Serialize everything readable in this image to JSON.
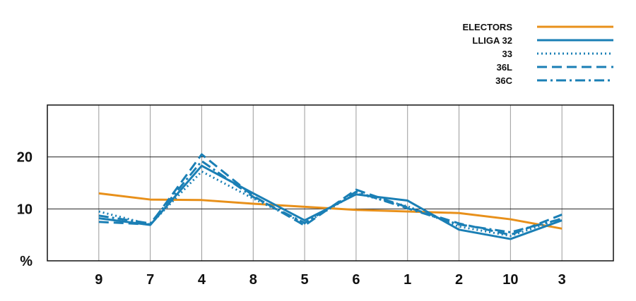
{
  "chart_data": {
    "type": "line",
    "title": "",
    "xlabel": "",
    "ylabel": "%",
    "categories": [
      "9",
      "7",
      "4",
      "8",
      "5",
      "6",
      "1",
      "2",
      "10",
      "3"
    ],
    "ylim": [
      0,
      30
    ],
    "yticks": [
      10,
      20
    ],
    "grid": true,
    "legend_position": "top-right",
    "series": [
      {
        "name": "ELECTORS",
        "color": "#E8901A",
        "style": "solid",
        "values": [
          13.0,
          11.8,
          11.7,
          11.0,
          10.4,
          9.8,
          9.5,
          9.2,
          8.0,
          6.2
        ]
      },
      {
        "name": "LLIGA 32",
        "color": "#1A7FB5",
        "style": "solid",
        "values": [
          8.2,
          6.9,
          18.3,
          13.0,
          7.8,
          12.8,
          11.6,
          6.0,
          4.2,
          7.8
        ]
      },
      {
        "name": "33",
        "color": "#1A7FB5",
        "style": "dotted",
        "values": [
          9.5,
          7.0,
          17.2,
          12.0,
          7.2,
          13.0,
          10.5,
          6.6,
          4.8,
          8.2
        ]
      },
      {
        "name": "36L",
        "color": "#1A7FB5",
        "style": "dashed",
        "values": [
          7.5,
          7.0,
          20.5,
          12.5,
          6.8,
          13.7,
          10.3,
          7.2,
          5.0,
          8.9
        ]
      },
      {
        "name": "36C",
        "color": "#1A7FB5",
        "style": "dashdot",
        "values": [
          8.7,
          7.2,
          19.2,
          12.3,
          7.3,
          13.3,
          10.1,
          7.0,
          5.5,
          8.1
        ]
      }
    ]
  }
}
